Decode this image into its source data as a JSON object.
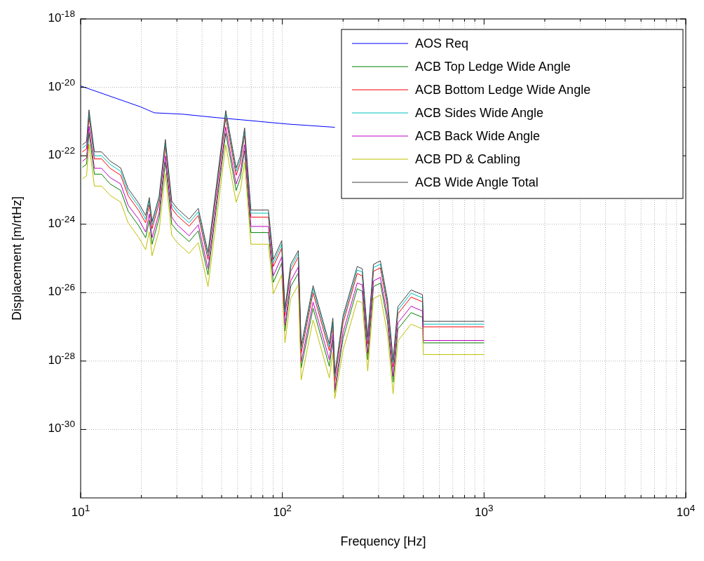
{
  "chart_data": {
    "type": "line",
    "xlabel": "Frequency [Hz]",
    "ylabel": "Displacement [m/rtHz]",
    "log": "xy",
    "grid": true,
    "legend": "top right",
    "marker": "none",
    "line_style": "solid",
    "xlim": [
      10,
      10000
    ],
    "ylim": [
      1e-32,
      1e-18
    ],
    "xticks": [
      {
        "value": 10,
        "label": "10$^{1}$"
      },
      {
        "value": 20,
        "label": null
      },
      {
        "value": 30,
        "label": null
      },
      {
        "value": 40,
        "label": null
      },
      {
        "value": 50,
        "label": null
      },
      {
        "value": 60,
        "label": null
      },
      {
        "value": 70,
        "label": null
      },
      {
        "value": 80,
        "label": null
      },
      {
        "value": 90,
        "label": null
      },
      {
        "value": 100,
        "label": "10$^{2}$"
      },
      {
        "value": 200,
        "label": null
      },
      {
        "value": 300,
        "label": null
      },
      {
        "value": 400,
        "label": null
      },
      {
        "value": 500,
        "label": null
      },
      {
        "value": 600,
        "label": null
      },
      {
        "value": 700,
        "label": null
      },
      {
        "value": 800,
        "label": null
      },
      {
        "value": 900,
        "label": null
      },
      {
        "value": 1000,
        "label": "10$^{3}$"
      },
      {
        "value": 2000,
        "label": null
      },
      {
        "value": 3000,
        "label": null
      },
      {
        "value": 4000,
        "label": null
      },
      {
        "value": 5000,
        "label": null
      },
      {
        "value": 6000,
        "label": null
      },
      {
        "value": 7000,
        "label": null
      },
      {
        "value": 8000,
        "label": null
      },
      {
        "value": 9000,
        "label": null
      },
      {
        "value": 10000,
        "label": "10$^{4}$"
      }
    ],
    "yticks": [
      {
        "value": 1e-30,
        "label": "10$^{-30}$"
      },
      {
        "value": 1e-28,
        "label": "10$^{-28}$"
      },
      {
        "value": 1e-26,
        "label": "10$^{-26}$"
      },
      {
        "value": 1e-24,
        "label": "10$^{-24}$"
      },
      {
        "value": 1e-22,
        "label": "10$^{-22}$"
      },
      {
        "value": 1e-20,
        "label": "10$^{-20}$"
      },
      {
        "value": 1e-18,
        "label": "10$^{-18}$"
      }
    ],
    "x": [
      10.2,
      10.7,
      11.0,
      11.7,
      12.7,
      14.0,
      15.8,
      17.2,
      19.4,
      21.0,
      21.9,
      22.6,
      24.5,
      26.3,
      28.3,
      30.1,
      34.5,
      38.3,
      42.8,
      46.4,
      52.4,
      59.0,
      61.9,
      65.0,
      69.8,
      85.3,
      90.2,
      99.3,
      103,
      110,
      120,
      124,
      142,
      171,
      178,
      182,
      200,
      235,
      249,
      265,
      283,
      306,
      332,
      354,
      374,
      435,
      495,
      500,
      1000
    ],
    "series": [
      {
        "name": "AOS Req",
        "color": "#0000ff",
        "x": [
          10,
          19.8,
          23.2,
          31.8,
          47.5,
          65.6,
          105,
          182
        ],
        "values": [
          1.1e-20,
          2.7e-21,
          1.8e-21,
          1.65e-21,
          1.3e-21,
          1.1e-21,
          8.5e-22,
          6.8e-22
        ]
      },
      {
        "name": "ACB Top Ledge Wide Angle",
        "color": "#008000",
        "values": [
          4.6e-23,
          5.7e-23,
          4.8e-22,
          2.9e-23,
          2.9e-23,
          1.5e-23,
          9.7e-24,
          2.4e-24,
          9e-25,
          4e-25,
          1.3e-24,
          2.6e-25,
          1.5e-24,
          6.6e-23,
          1e-24,
          6.4e-25,
          3.1e-25,
          6.4e-25,
          3.3e-26,
          1.5e-24,
          4.6e-22,
          9.7e-24,
          2.2e-23,
          1.4e-22,
          5.7e-25,
          5.7e-25,
          2e-26,
          7.3e-26,
          7.5e-28,
          1.5e-26,
          3.7e-26,
          6.2e-29,
          3.5e-27,
          7e-29,
          4e-28,
          1.2e-29,
          4.6e-28,
          1.3e-26,
          1.1e-26,
          1.1e-28,
          1.5e-26,
          1.9e-26,
          1.4e-27,
          2.4e-29,
          8.6e-28,
          2.6e-27,
          1.9e-27,
          3.4e-28,
          3.4e-28
        ]
      },
      {
        "name": "ACB Bottom Ledge Wide Angle",
        "color": "#ff0000",
        "values": [
          1.3e-22,
          1.6e-22,
          1.4e-21,
          8.1e-23,
          8.1e-23,
          4.3e-23,
          2.7e-23,
          6.8e-24,
          2.5e-24,
          1.1e-24,
          3.7e-24,
          7.4e-25,
          4.1e-24,
          1.9e-22,
          2.9e-24,
          1.8e-24,
          8.7e-25,
          1.8e-24,
          9.3e-26,
          4.1e-24,
          1.3e-21,
          2.7e-23,
          6.1e-23,
          4e-22,
          1.6e-24,
          1.6e-24,
          5.8e-26,
          2e-25,
          2.1e-27,
          4.2e-26,
          1.1e-25,
          1.7e-28,
          9.9e-27,
          2e-28,
          1.1e-27,
          2.6e-29,
          1.3e-27,
          3.6e-26,
          3.1e-26,
          3.2e-28,
          4.2e-26,
          5.3e-26,
          3.9e-27,
          6.8e-29,
          2.4e-27,
          7.4e-27,
          5.4e-27,
          1e-27,
          1e-27
        ]
      },
      {
        "name": "ACB Sides Wide Angle",
        "color": "#00bfbf",
        "values": [
          1.7e-22,
          2.1e-22,
          1.8e-21,
          1e-22,
          1e-22,
          5.6e-23,
          3.5e-23,
          8.8e-24,
          3.3e-24,
          1.4e-24,
          4.8e-24,
          9.6e-25,
          5.3e-24,
          2.4e-22,
          3.8e-24,
          2.3e-24,
          1.1e-24,
          2.3e-24,
          1.2e-25,
          5.3e-24,
          1.7e-21,
          3.5e-23,
          7.8e-23,
          5.2e-22,
          2.1e-24,
          2.1e-24,
          7.4e-26,
          2.6e-25,
          2.7e-27,
          5.4e-26,
          1.4e-25,
          2.2e-28,
          1.3e-26,
          2.6e-28,
          1.4e-27,
          3.4e-29,
          1.7e-27,
          4.6e-26,
          4e-26,
          4.1e-28,
          5.4e-26,
          6.8e-26,
          5e-27,
          8.8e-29,
          3.1e-27,
          9.6e-27,
          7e-27,
          1.2e-27,
          1.2e-27
        ]
      },
      {
        "name": "ACB Back Wide Angle",
        "color": "#bf00bf",
        "values": [
          6.9e-23,
          8.6e-23,
          7.3e-22,
          4.3e-23,
          4.3e-23,
          2.3e-23,
          1.5e-23,
          3.6e-24,
          1.4e-24,
          5.9e-25,
          2e-24,
          4e-25,
          2.2e-24,
          9.9e-23,
          1.6e-24,
          9.6e-25,
          4.6e-25,
          9.6e-25,
          5e-26,
          2.2e-24,
          6.9e-22,
          1.5e-23,
          3.2e-23,
          2.1e-22,
          8.6e-25,
          8.6e-25,
          3.1e-26,
          1.1e-25,
          1.1e-27,
          2.2e-26,
          5.6e-26,
          9.2e-29,
          5.3e-27,
          1.1e-28,
          5.9e-28,
          1.4e-29,
          6.9e-28,
          1.9e-26,
          1.7e-26,
          1.7e-28,
          2.2e-26,
          2.8e-26,
          2.1e-27,
          3.6e-29,
          1.3e-27,
          4e-27,
          2.9e-27,
          4e-28,
          4e-28
        ]
      },
      {
        "name": "ACB PD & Cabling",
        "color": "#bfbf00",
        "values": [
          2.1e-23,
          2.6e-23,
          2.2e-22,
          1.3e-23,
          1.3e-23,
          7e-24,
          4.4e-24,
          1.1e-24,
          4.1e-25,
          1.8e-25,
          6e-25,
          1.2e-25,
          6.6e-25,
          3e-23,
          4.7e-25,
          2.9e-25,
          1.4e-25,
          2.9e-25,
          1.5e-26,
          6.6e-25,
          2.1e-22,
          4.4e-24,
          9.8e-24,
          6.5e-23,
          2.6e-25,
          2.6e-25,
          9.3e-27,
          3.3e-26,
          3.4e-28,
          6.7e-27,
          1.7e-26,
          2.8e-29,
          1.6e-27,
          3.2e-29,
          1.8e-28,
          8e-30,
          2.1e-28,
          5.8e-27,
          5e-27,
          5.1e-29,
          6.7e-27,
          8.5e-27,
          6.3e-28,
          1.1e-29,
          3.9e-28,
          1.2e-27,
          8.7e-28,
          1.55e-28,
          1.55e-28
        ]
      },
      {
        "name": "ACB Wide Angle Total",
        "color": "#404040",
        "values": [
          2.1e-22,
          2.6e-22,
          2.2e-21,
          1.3e-22,
          1.3e-22,
          7e-23,
          4.4e-23,
          1.1e-23,
          4.1e-24,
          1.8e-24,
          6e-24,
          1.2e-24,
          6.6e-24,
          3e-22,
          4.7e-24,
          2.9e-24,
          1.4e-24,
          2.9e-24,
          1.5e-25,
          6.6e-24,
          2.1e-21,
          4.4e-23,
          9.8e-23,
          6.5e-22,
          2.6e-24,
          2.6e-24,
          9.3e-26,
          3.3e-25,
          3.4e-27,
          6.7e-26,
          1.7e-25,
          2.8e-28,
          1.6e-26,
          3.2e-28,
          1.8e-27,
          4.2e-29,
          2.1e-27,
          5.8e-26,
          5e-26,
          5.1e-28,
          6.7e-26,
          8.5e-26,
          6.3e-27,
          1.1e-28,
          3.9e-27,
          1.2e-26,
          8.7e-27,
          1.45e-27,
          1.45e-27
        ]
      }
    ]
  }
}
